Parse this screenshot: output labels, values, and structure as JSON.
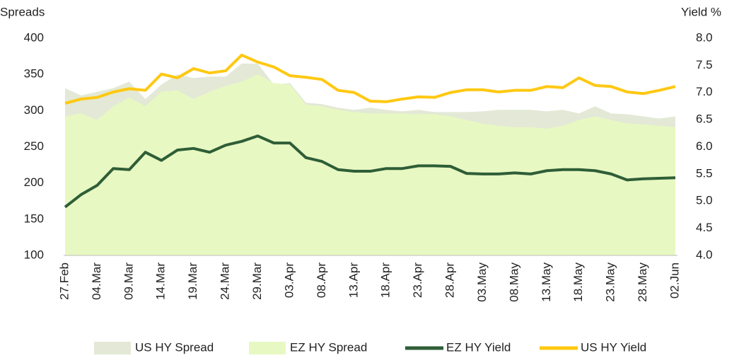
{
  "chart_data": {
    "type": "line",
    "ylabel": "Spreads",
    "y2label": "Yield %",
    "categories": [
      "27.Feb",
      null,
      "04.Mar",
      null,
      "09.Mar",
      null,
      "14.Mar",
      null,
      "19.Mar",
      null,
      "24.Mar",
      null,
      "29.Mar",
      null,
      "03.Apr",
      null,
      "08.Apr",
      null,
      "13.Apr",
      null,
      "18.Apr",
      null,
      "23.Apr",
      null,
      "28.Apr",
      null,
      "03.May",
      null,
      "08.May",
      null,
      "13.May",
      null,
      "18.May",
      null,
      "23.May",
      null,
      "28.May",
      null,
      "02.Jun"
    ],
    "ylim": [
      100,
      400
    ],
    "yticks": [
      100,
      150,
      200,
      250,
      300,
      350,
      400
    ],
    "y2lim": [
      4,
      8
    ],
    "y2ticks": [
      {
        "value": 4,
        "label": "4.0"
      },
      4.5,
      {
        "value": 5,
        "label": "5.0"
      },
      5.5,
      {
        "value": 6,
        "label": "6.0"
      },
      6.5,
      {
        "value": 7,
        "label": "7.0"
      },
      7.5,
      {
        "value": 8,
        "label": "8.0"
      }
    ],
    "grid": false,
    "legend": "bottom",
    "series": [
      {
        "name": "US HY Spread",
        "type": "area",
        "color": "#e3e9d6",
        "values": [
          331,
          321,
          326,
          331,
          340,
          316,
          336,
          350,
          345,
          347,
          347,
          365,
          365,
          336,
          338,
          311,
          309,
          304,
          301,
          304,
          301,
          299,
          301,
          298,
          298,
          298,
          299,
          301,
          301,
          301,
          299,
          301,
          296,
          306,
          296,
          295,
          292,
          289,
          292
        ]
      },
      {
        "name": "EZ HY Spread",
        "type": "area",
        "color": "#e8f8c2",
        "values": [
          292,
          296,
          287,
          306,
          318,
          306,
          326,
          328,
          316,
          326,
          334,
          340,
          350,
          338,
          336,
          308,
          306,
          301,
          298,
          296,
          296,
          296,
          295,
          295,
          292,
          287,
          282,
          279,
          277,
          277,
          275,
          279,
          287,
          292,
          287,
          282,
          281,
          279,
          277
        ]
      },
      {
        "name": "EZ HY Yield",
        "type": "line",
        "axis": "y2",
        "color": "#2e5e37",
        "values": [
          4.89,
          5.12,
          5.29,
          5.6,
          5.58,
          5.9,
          5.75,
          5.94,
          5.97,
          5.9,
          6.03,
          6.1,
          6.2,
          6.07,
          6.07,
          5.8,
          5.73,
          5.58,
          5.55,
          5.55,
          5.6,
          5.6,
          5.65,
          5.65,
          5.64,
          5.51,
          5.5,
          5.5,
          5.52,
          5.5,
          5.56,
          5.58,
          5.58,
          5.56,
          5.5,
          5.39,
          5.41,
          5.42,
          5.43
        ]
      },
      {
        "name": "US HY Yield",
        "type": "line",
        "axis": "y2",
        "color": "#ffc812",
        "values": [
          6.8,
          6.88,
          6.91,
          7.01,
          7.07,
          7.04,
          7.34,
          7.27,
          7.44,
          7.36,
          7.4,
          7.69,
          7.56,
          7.47,
          7.31,
          7.28,
          7.24,
          7.04,
          7.0,
          6.84,
          6.83,
          6.88,
          6.92,
          6.91,
          7.0,
          7.05,
          7.05,
          7.01,
          7.04,
          7.04,
          7.11,
          7.09,
          7.27,
          7.13,
          7.11,
          7.01,
          6.98,
          7.04,
          7.11
        ]
      }
    ]
  }
}
